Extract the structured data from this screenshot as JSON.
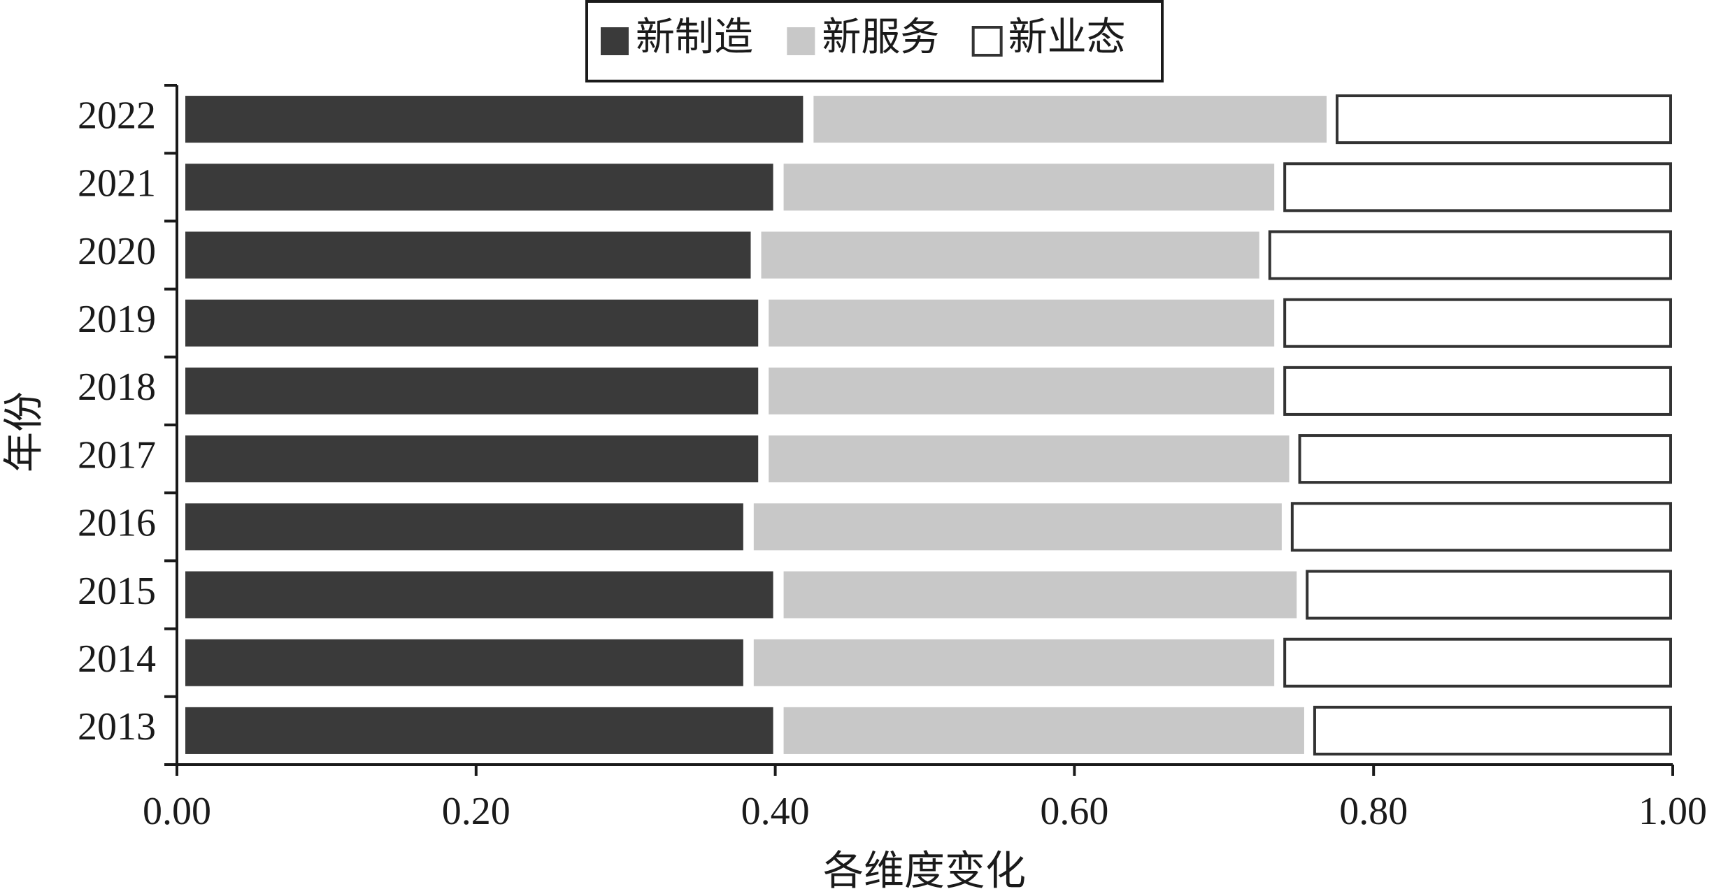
{
  "chart_data": {
    "type": "stacked-barh",
    "categories": [
      "2013",
      "2014",
      "2015",
      "2016",
      "2017",
      "2018",
      "2019",
      "2020",
      "2021",
      "2022"
    ],
    "series": [
      {
        "name": "新制造",
        "color": "#3a3a3a",
        "values": [
          0.4,
          0.38,
          0.4,
          0.38,
          0.39,
          0.39,
          0.39,
          0.385,
          0.4,
          0.42
        ]
      },
      {
        "name": "新服务",
        "color": "#c8c8c8",
        "values": [
          0.355,
          0.355,
          0.35,
          0.36,
          0.355,
          0.345,
          0.345,
          0.34,
          0.335,
          0.35
        ]
      },
      {
        "name": "新业态",
        "color": "#ffffff",
        "values": [
          0.245,
          0.265,
          0.25,
          0.26,
          0.255,
          0.265,
          0.265,
          0.275,
          0.265,
          0.23
        ]
      }
    ],
    "xlabel": "各维度变化",
    "ylabel": "年份",
    "xlim": [
      0,
      1
    ],
    "xticks": [
      {
        "value": 0,
        "label": "0.00"
      },
      {
        "value": 0.2,
        "label": "0.20"
      },
      {
        "value": 0.4,
        "label": "0.40"
      },
      {
        "value": 0.6,
        "label": "0.60"
      },
      {
        "value": 0.8,
        "label": "0.80"
      },
      {
        "value": 1,
        "label": "1.00"
      }
    ],
    "legend": "top"
  }
}
